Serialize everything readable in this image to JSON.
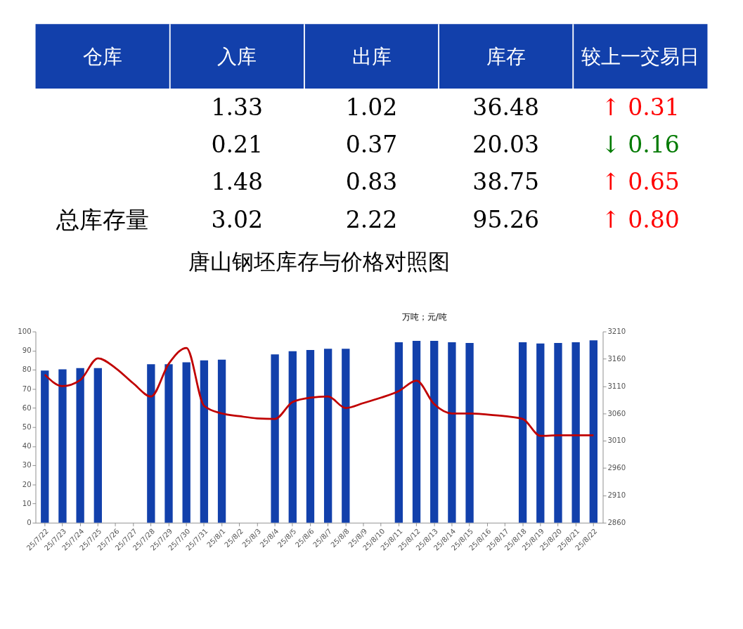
{
  "chart_data": [
    {
      "type": "other",
      "categories": [
        "仓库",
        "入库",
        "出库",
        "库存",
        "较上一交易日"
      ],
      "y_categories": [
        null,
        null,
        null,
        "总库存量"
      ],
      "cell_labels": [
        [
          "1.33",
          "1.02",
          "36.48",
          "↑ 0.31"
        ],
        [
          "0.21",
          "0.37",
          "20.03",
          "↓ 0.16"
        ],
        [
          "1.48",
          "0.83",
          "38.75",
          "↑ 0.65"
        ],
        [
          "3.02",
          "2.22",
          "95.26",
          "↑ 0.80"
        ]
      ],
      "colors": [
        "#ff0000",
        "#007a00",
        "#ff0000",
        "#ff0000"
      ]
    },
    {
      "type": "bar",
      "title": "唐山钢坯库存与价格对照图",
      "annotations": [
        "万吨；元/吨"
      ],
      "categories": [
        "25/7/22",
        "25/7/23",
        "25/7/24",
        "25/7/25",
        "25/7/26",
        "25/7/27",
        "25/7/28",
        "25/7/29",
        "25/7/30",
        "25/7/31",
        "25/8/1",
        "25/8/2",
        "25/8/3",
        "25/8/4",
        "25/8/5",
        "25/8/6",
        "25/8/7",
        "25/8/8",
        "25/8/9",
        "25/8/10",
        "25/8/11",
        "25/8/12",
        "25/8/13",
        "25/8/14",
        "25/8/15",
        "25/8/16",
        "25/8/17",
        "25/8/18",
        "25/8/19",
        "25/8/20",
        "25/8/21",
        "25/8/22"
      ],
      "series": [
        {
          "type": "bar",
          "color": "#1240ab",
          "values": [
            79.6,
            80.2,
            80.9,
            80.9,
            null,
            null,
            82.9,
            82.9,
            83.9,
            84.9,
            85.3,
            null,
            null,
            88.0,
            89.7,
            90.3,
            91.0,
            91.0,
            null,
            null,
            94.4,
            95.1,
            95.1,
            94.4,
            94.0,
            null,
            null,
            94.4,
            93.7,
            94.0,
            94.4,
            95.4
          ]
        },
        {
          "type": "line",
          "axis": "y2",
          "color": "#c00000",
          "values": [
            3131,
            3110,
            3121,
            3161,
            3143,
            3115,
            3091,
            3151,
            3180,
            3074,
            3060,
            3055,
            3051,
            3050,
            3081,
            3089,
            3091,
            3070,
            3079,
            3089,
            3101,
            3120,
            3077,
            3060,
            3060,
            3058,
            3055,
            3050,
            3019,
            3020,
            3020,
            3020
          ]
        }
      ],
      "ylim": [
        0,
        100
      ],
      "yticks": [
        0,
        10,
        20,
        30,
        40,
        50,
        60,
        70,
        80,
        90,
        100
      ],
      "y2lim": [
        2860,
        3210
      ],
      "y2ticks": [
        2860,
        2910,
        2960,
        3010,
        3060,
        3110,
        3160,
        3210
      ],
      "grid": false,
      "marker": "none",
      "line_style": "solid"
    }
  ]
}
